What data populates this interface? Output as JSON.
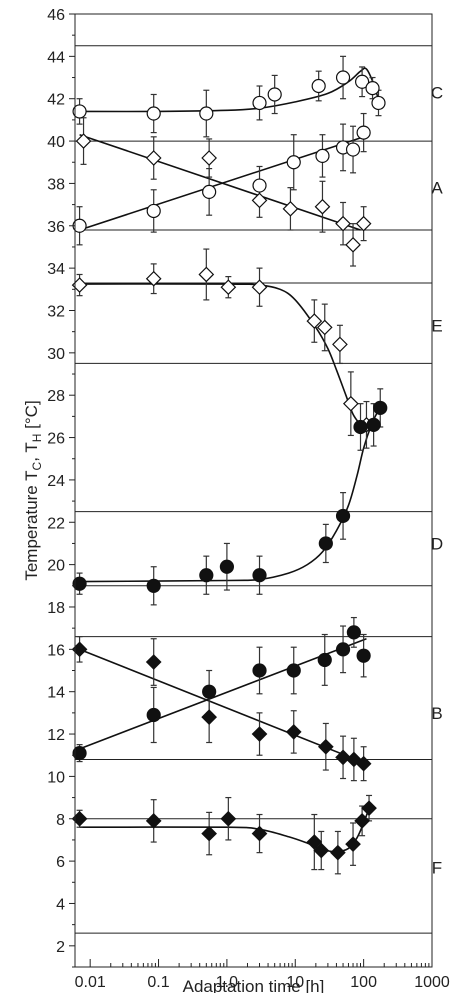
{
  "chart_data": {
    "type": "scatter",
    "title": "",
    "xlabel": "Adaptation time [h]",
    "ylabel": "Temperature T_C, T_H [°C]",
    "ylabel_parts": {
      "main": "Temperature T",
      "sub1": "C",
      "sep": ", T",
      "sub2": "H",
      "unit": " [°C]"
    },
    "xscale": "log",
    "xlim": [
      0.006,
      1000
    ],
    "ylim": [
      1,
      46
    ],
    "x_ticks": [
      0.01,
      0.1,
      1,
      10,
      100,
      1000
    ],
    "x_tick_labels": [
      "0.01",
      "0.1",
      "1.0",
      "10",
      "100",
      "1000"
    ],
    "y_ticks": [
      2,
      4,
      6,
      8,
      10,
      12,
      14,
      16,
      18,
      20,
      22,
      24,
      26,
      28,
      30,
      32,
      34,
      36,
      38,
      40,
      42,
      44,
      46
    ],
    "y_tick_labels": [
      "2",
      "4",
      "6",
      "8",
      "10",
      "12",
      "14",
      "16",
      "18",
      "20",
      "22",
      "24",
      "26",
      "28",
      "30",
      "32",
      "34",
      "36",
      "38",
      "40",
      "42",
      "44",
      "46"
    ],
    "grid": false,
    "panel_lines": [
      44.5,
      40,
      35.8,
      33.3,
      29.5,
      22.5,
      19,
      16.6,
      10.8,
      8,
      2.6
    ],
    "panel_labels": [
      {
        "label": "C",
        "y": 42.3
      },
      {
        "label": "A",
        "y": 37.8
      },
      {
        "label": "E",
        "y": 31.3
      },
      {
        "label": "D",
        "y": 21.0
      },
      {
        "label": "B",
        "y": 13.0
      },
      {
        "label": "F",
        "y": 5.7
      }
    ],
    "series": [
      {
        "marker": "open-circle",
        "points": [
          {
            "x": 0.007,
            "y": 41.4,
            "err": 0.6
          },
          {
            "x": 0.085,
            "y": 41.3,
            "err": 0.9
          },
          {
            "x": 0.5,
            "y": 41.3,
            "err": 1.1
          },
          {
            "x": 3.0,
            "y": 41.8,
            "err": 0.8
          },
          {
            "x": 5.0,
            "y": 42.2,
            "err": 0.9
          },
          {
            "x": 22,
            "y": 42.6,
            "err": 0.7
          },
          {
            "x": 50,
            "y": 43.0,
            "err": 1.0
          },
          {
            "x": 95,
            "y": 42.8,
            "err": 0.7
          },
          {
            "x": 135,
            "y": 42.5,
            "err": 0.5
          },
          {
            "x": 165,
            "y": 41.8,
            "err": 0.6
          }
        ],
        "curve": [
          [
            0.007,
            41.4
          ],
          [
            0.1,
            41.4
          ],
          [
            1,
            41.45
          ],
          [
            3,
            41.55
          ],
          [
            10,
            41.85
          ],
          [
            30,
            42.25
          ],
          [
            60,
            42.8
          ],
          [
            90,
            43.3
          ],
          [
            110,
            43.4
          ],
          [
            140,
            42.7
          ],
          [
            170,
            41.8
          ]
        ]
      },
      {
        "marker": "open-circle",
        "points": [
          {
            "x": 0.007,
            "y": 36.0,
            "err": 0.9
          },
          {
            "x": 0.085,
            "y": 36.7,
            "err": 1.0
          },
          {
            "x": 0.55,
            "y": 37.6,
            "err": 1.1
          },
          {
            "x": 3.0,
            "y": 37.9,
            "err": 0.9
          },
          {
            "x": 9.5,
            "y": 39.0,
            "err": 1.3
          },
          {
            "x": 25,
            "y": 39.3,
            "err": 1.0
          },
          {
            "x": 50,
            "y": 39.7,
            "err": 1.1
          },
          {
            "x": 70,
            "y": 39.6,
            "err": 1.1
          },
          {
            "x": 100,
            "y": 40.4,
            "err": 0.9
          }
        ],
        "curve": [
          [
            0.007,
            35.8
          ],
          [
            100,
            40.2
          ]
        ]
      },
      {
        "marker": "open-diamond",
        "points": [
          {
            "x": 0.008,
            "y": 40.0,
            "err": 1.1
          },
          {
            "x": 0.085,
            "y": 39.2,
            "err": 1.0
          },
          {
            "x": 0.55,
            "y": 39.2,
            "err": 0.9
          },
          {
            "x": 3.0,
            "y": 37.2,
            "err": 0.8
          },
          {
            "x": 8.5,
            "y": 36.8,
            "err": 1.0
          },
          {
            "x": 25,
            "y": 36.9,
            "err": 1.2
          },
          {
            "x": 50,
            "y": 36.1,
            "err": 1.0
          },
          {
            "x": 70,
            "y": 35.1,
            "err": 1.0
          },
          {
            "x": 100,
            "y": 36.1,
            "err": 0.8
          }
        ],
        "curve": [
          [
            0.007,
            40.3
          ],
          [
            90,
            35.8
          ]
        ]
      },
      {
        "marker": "open-diamond",
        "points": [
          {
            "x": 0.007,
            "y": 33.2,
            "err": 0.5
          },
          {
            "x": 0.085,
            "y": 33.5,
            "err": 0.7
          },
          {
            "x": 0.5,
            "y": 33.7,
            "err": 1.2
          },
          {
            "x": 1.05,
            "y": 33.1,
            "err": 0.5
          },
          {
            "x": 3.0,
            "y": 33.1,
            "err": 0.9
          },
          {
            "x": 19,
            "y": 31.5,
            "err": 1.0
          },
          {
            "x": 27,
            "y": 31.2,
            "err": 1.1
          },
          {
            "x": 45,
            "y": 30.4,
            "err": 0.9
          },
          {
            "x": 65,
            "y": 27.6,
            "err": 1.5
          },
          {
            "x": 110,
            "y": 26.6,
            "err": 1.1
          }
        ],
        "curve": [
          [
            0.007,
            33.25
          ],
          [
            1,
            33.25
          ],
          [
            3,
            33.2
          ],
          [
            6,
            33.0
          ],
          [
            10,
            32.5
          ],
          [
            20,
            31.2
          ],
          [
            30,
            30.2
          ],
          [
            40,
            29.2
          ],
          [
            55,
            28.0
          ],
          [
            70,
            27.1
          ],
          [
            90,
            26.6
          ]
        ]
      },
      {
        "marker": "filled-circle",
        "points": [
          {
            "x": 0.007,
            "y": 19.1,
            "err": 0.5
          },
          {
            "x": 0.085,
            "y": 19.0,
            "err": 0.9
          },
          {
            "x": 0.5,
            "y": 19.5,
            "err": 0.9
          },
          {
            "x": 1.0,
            "y": 19.9,
            "err": 1.1
          },
          {
            "x": 3.0,
            "y": 19.5,
            "err": 0.9
          },
          {
            "x": 28,
            "y": 21.0,
            "err": 0.9
          },
          {
            "x": 50,
            "y": 22.3,
            "err": 1.1
          },
          {
            "x": 90,
            "y": 26.5,
            "err": 1.1
          },
          {
            "x": 140,
            "y": 26.6,
            "err": 1.0
          },
          {
            "x": 175,
            "y": 27.4,
            "err": 0.9
          }
        ],
        "curve": [
          [
            0.007,
            19.2
          ],
          [
            1,
            19.25
          ],
          [
            3,
            19.3
          ],
          [
            8,
            19.6
          ],
          [
            15,
            20.0
          ],
          [
            25,
            20.6
          ],
          [
            40,
            21.6
          ],
          [
            60,
            22.8
          ],
          [
            80,
            24.2
          ],
          [
            100,
            25.5
          ],
          [
            130,
            26.6
          ],
          [
            165,
            27.3
          ]
        ]
      },
      {
        "marker": "filled-circle",
        "points": [
          {
            "x": 0.007,
            "y": 11.1,
            "err": 0.4
          },
          {
            "x": 0.085,
            "y": 12.9,
            "err": 1.3
          },
          {
            "x": 0.55,
            "y": 14.0,
            "err": 1.0
          },
          {
            "x": 3.0,
            "y": 15.0,
            "err": 1.1
          },
          {
            "x": 9.5,
            "y": 15.0,
            "err": 1.1
          },
          {
            "x": 27,
            "y": 15.5,
            "err": 1.2
          },
          {
            "x": 50,
            "y": 16.0,
            "err": 1.1
          },
          {
            "x": 72,
            "y": 16.8,
            "err": 0.7
          },
          {
            "x": 100,
            "y": 15.7,
            "err": 1.0
          }
        ],
        "curve": [
          [
            0.007,
            11.3
          ],
          [
            110,
            16.5
          ]
        ]
      },
      {
        "marker": "filled-diamond",
        "points": [
          {
            "x": 0.007,
            "y": 16.0,
            "err": 0.6
          },
          {
            "x": 0.085,
            "y": 15.4,
            "err": 1.1
          },
          {
            "x": 0.55,
            "y": 12.8,
            "err": 1.2
          },
          {
            "x": 3.0,
            "y": 12.0,
            "err": 1.0
          },
          {
            "x": 9.5,
            "y": 12.1,
            "err": 1.0
          },
          {
            "x": 28,
            "y": 11.4,
            "err": 1.1
          },
          {
            "x": 50,
            "y": 10.9,
            "err": 1.0
          },
          {
            "x": 72,
            "y": 10.8,
            "err": 1.0
          },
          {
            "x": 100,
            "y": 10.6,
            "err": 0.8
          }
        ],
        "curve": [
          [
            0.007,
            16.0
          ],
          [
            110,
            10.6
          ]
        ]
      },
      {
        "marker": "filled-diamond",
        "points": [
          {
            "x": 0.007,
            "y": 8.0,
            "err": 0.4
          },
          {
            "x": 0.085,
            "y": 7.9,
            "err": 1.0
          },
          {
            "x": 0.55,
            "y": 7.3,
            "err": 1.0
          },
          {
            "x": 1.05,
            "y": 8.0,
            "err": 1.0
          },
          {
            "x": 3.0,
            "y": 7.3,
            "err": 0.9
          },
          {
            "x": 19,
            "y": 6.9,
            "err": 1.3
          },
          {
            "x": 24,
            "y": 6.5,
            "err": 0.9
          },
          {
            "x": 42,
            "y": 6.4,
            "err": 1.0
          },
          {
            "x": 70,
            "y": 6.8,
            "err": 1.0
          },
          {
            "x": 95,
            "y": 7.9,
            "err": 0.7
          },
          {
            "x": 120,
            "y": 8.5,
            "err": 0.6
          }
        ],
        "curve": [
          [
            0.007,
            7.6
          ],
          [
            1,
            7.6
          ],
          [
            3,
            7.5
          ],
          [
            8,
            7.15
          ],
          [
            15,
            6.85
          ],
          [
            25,
            6.55
          ],
          [
            40,
            6.45
          ],
          [
            60,
            6.6
          ],
          [
            80,
            7.1
          ],
          [
            100,
            7.8
          ],
          [
            120,
            8.5
          ]
        ]
      }
    ]
  }
}
